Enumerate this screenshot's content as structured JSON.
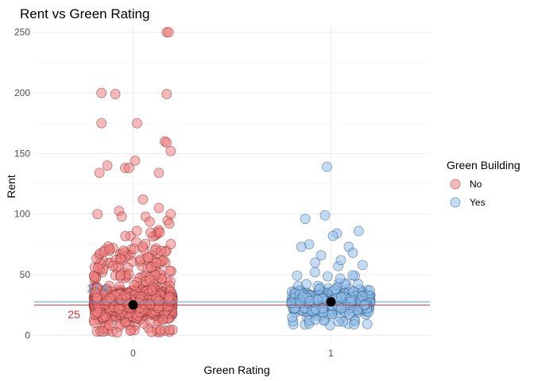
{
  "chart_data": {
    "type": "scatter",
    "title": "Rent vs Green Rating",
    "xlabel": "Green Rating",
    "ylabel": "Rent",
    "x_categories": [
      "0",
      "1"
    ],
    "xlim": [
      -0.5,
      1.5
    ],
    "ylim": [
      -5,
      255
    ],
    "yticks": [
      0,
      50,
      100,
      150,
      200,
      250
    ],
    "grid": true,
    "jitter_width": 0.2,
    "legend": {
      "title": "Green Building",
      "position": "right",
      "entries": [
        {
          "label": "No",
          "color": "#f08080"
        },
        {
          "label": "Yes",
          "color": "#90c0ec"
        }
      ]
    },
    "series": [
      {
        "name": "No",
        "x": 0,
        "color": "#f08080",
        "outlier_points": [
          [
            0.17,
            250
          ],
          [
            0.18,
            250
          ],
          [
            -0.16,
            200
          ],
          [
            -0.09,
            199
          ],
          [
            0.17,
            199
          ],
          [
            -0.16,
            175
          ],
          [
            0.02,
            175
          ],
          [
            0.16,
            160
          ],
          [
            0.17,
            159
          ],
          [
            0.19,
            152
          ],
          [
            0.01,
            144
          ],
          [
            -0.13,
            140
          ],
          [
            -0.04,
            138
          ],
          [
            -0.02,
            138
          ],
          [
            0.13,
            134
          ],
          [
            -0.17,
            134
          ],
          [
            0.05,
            112
          ],
          [
            0.19,
            100
          ],
          [
            -0.18,
            100
          ],
          [
            0.13,
            105
          ]
        ],
        "bulk_rent_range": [
          2,
          104
        ],
        "bulk_center": 26,
        "mean": 25
      },
      {
        "name": "Yes",
        "x": 1,
        "color": "#90c0ec",
        "outlier_points": [
          [
            0.98,
            139
          ],
          [
            0.97,
            99
          ],
          [
            0.87,
            96
          ],
          [
            1.14,
            86
          ],
          [
            1.03,
            84
          ],
          [
            1.01,
            82
          ],
          [
            0.89,
            75
          ],
          [
            0.85,
            73
          ],
          [
            1.09,
            73
          ],
          [
            1.11,
            68
          ],
          [
            0.95,
            66
          ],
          [
            1.05,
            62
          ],
          [
            0.92,
            60
          ],
          [
            1.16,
            58
          ]
        ],
        "bulk_rent_range": [
          8,
          58
        ],
        "bulk_center": 28,
        "mean": 27.6
      }
    ],
    "reference_lines": [
      {
        "value": 27.6,
        "label": "27.6",
        "color": "#56a6d6"
      },
      {
        "value": 25,
        "label": "25",
        "color": "#cc3333"
      }
    ]
  }
}
